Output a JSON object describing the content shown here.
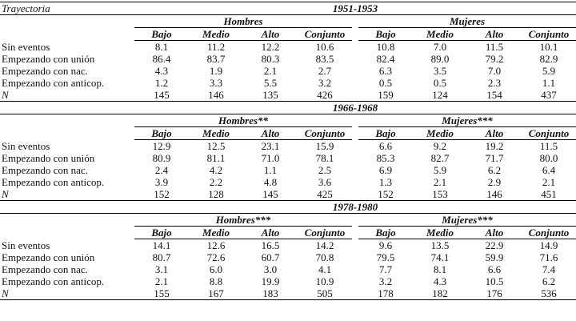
{
  "header": {
    "label": "Trayectoria"
  },
  "panels": [
    {
      "period": "1951-1953",
      "groups": [
        "Hombres",
        "Mujeres"
      ],
      "subheaders": [
        "Bajo",
        "Medio",
        "Alto",
        "Conjunto",
        "Bajo",
        "Medio",
        "Alto",
        "Conjunto"
      ],
      "rows": [
        {
          "label": "Sin eventos",
          "values": [
            "8.1",
            "11.2",
            "12.2",
            "10.6",
            "10.8",
            "7.0",
            "11.5",
            "10.1"
          ]
        },
        {
          "label": "Empezando con unión",
          "values": [
            "86.4",
            "83.7",
            "80.3",
            "83.5",
            "82.4",
            "89.0",
            "79.2",
            "82.9"
          ]
        },
        {
          "label": "Empezando con nac.",
          "values": [
            "4.3",
            "1.9",
            "2.1",
            "2.7",
            "6.3",
            "3.5",
            "7.0",
            "5.9"
          ]
        },
        {
          "label": "Empezando con anticop.",
          "values": [
            "1.2",
            "3.3",
            "5.5",
            "3.2",
            "0.5",
            "0.5",
            "2.3",
            "1.1"
          ]
        },
        {
          "label": "N",
          "values": [
            "145",
            "146",
            "135",
            "426",
            "159",
            "124",
            "154",
            "437"
          ]
        }
      ]
    },
    {
      "period": "1966-1968",
      "groups": [
        "Hombres**",
        "Mujeres***"
      ],
      "subheaders": [
        "Bajo",
        "Medio",
        "Alto",
        "Conjunto",
        "Bajo",
        "Medio",
        "Alto",
        "Conjunto"
      ],
      "rows": [
        {
          "label": "Sin eventos",
          "values": [
            "12.9",
            "12.5",
            "23.1",
            "15.9",
            "6.6",
            "9.2",
            "19.2",
            "11.5"
          ]
        },
        {
          "label": "Empezando con unión",
          "values": [
            "80.9",
            "81.1",
            "71.0",
            "78.1",
            "85.3",
            "82.7",
            "71.7",
            "80.0"
          ]
        },
        {
          "label": "Empezando con nac.",
          "values": [
            "2.4",
            "4.2",
            "1.1",
            "2.5",
            "6.9",
            "5.9",
            "6.2",
            "6.4"
          ]
        },
        {
          "label": "Empezando con anticop.",
          "values": [
            "3.9",
            "2.2",
            "4.8",
            "3.6",
            "1.3",
            "2.1",
            "2.9",
            "2.1"
          ]
        },
        {
          "label": "N",
          "values": [
            "152",
            "128",
            "145",
            "425",
            "152",
            "153",
            "146",
            "451"
          ]
        }
      ]
    },
    {
      "period": "1978-1980",
      "groups": [
        "Hombres***",
        "Mujeres***"
      ],
      "subheaders": [
        "Bajo",
        "Medio",
        "Alto",
        "Conjunto",
        "Bajo",
        "Medio",
        "Alto",
        "Conjunto"
      ],
      "rows": [
        {
          "label": "Sin eventos",
          "values": [
            "14.1",
            "12.6",
            "16.5",
            "14.2",
            "9.6",
            "13.5",
            "22.9",
            "14.9"
          ]
        },
        {
          "label": "Empezando con unión",
          "values": [
            "80.7",
            "72.6",
            "60.7",
            "70.8",
            "79.5",
            "74.1",
            "59.9",
            "71.6"
          ]
        },
        {
          "label": "Empezando con nac.",
          "values": [
            "3.1",
            "6.0",
            "3.0",
            "4.1",
            "7.7",
            "8.1",
            "6.6",
            "7.4"
          ]
        },
        {
          "label": "Empezando con anticop.",
          "values": [
            "2.1",
            "8.8",
            "19.9",
            "10.9",
            "3.2",
            "4.3",
            "10.5",
            "6.2"
          ]
        },
        {
          "label": "N",
          "values": [
            "155",
            "167",
            "183",
            "505",
            "178",
            "182",
            "176",
            "536"
          ]
        }
      ]
    }
  ]
}
